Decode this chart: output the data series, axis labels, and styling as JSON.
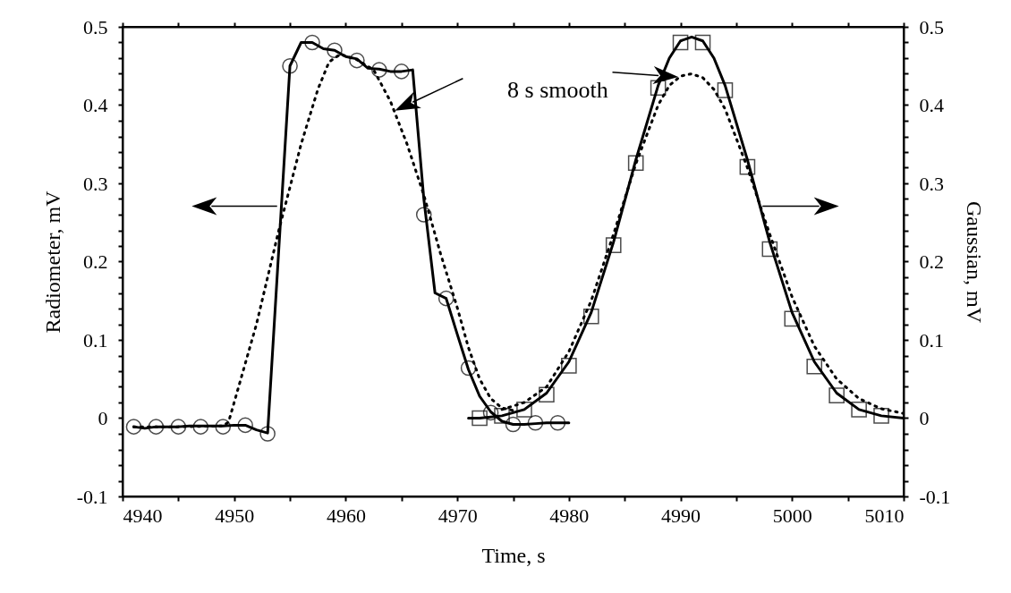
{
  "chart_data": {
    "type": "line",
    "xlabel": "Time, s",
    "ylabel": "Radiometer, mV",
    "y2label": "Gaussian, mV",
    "xlim": [
      4940,
      5010
    ],
    "ylim": [
      -0.1,
      0.5
    ],
    "y2lim": [
      -0.1,
      0.5
    ],
    "xticks": [
      4940,
      {
        "value": 4945,
        "label": null
      },
      4950,
      {
        "value": 4955,
        "label": null
      },
      4960,
      {
        "value": 4965,
        "label": null
      },
      4970,
      {
        "value": 4975,
        "label": null
      },
      4980,
      {
        "value": 4985,
        "label": null
      },
      4990,
      {
        "value": 4995,
        "label": null
      },
      5000,
      {
        "value": 5005,
        "label": null
      },
      5010
    ],
    "yticks": [
      -0.1,
      {
        "value": -0.08,
        "label": null
      },
      {
        "value": -0.06,
        "label": null
      },
      {
        "value": -0.04,
        "label": null
      },
      {
        "value": -0.02,
        "label": null
      },
      0,
      {
        "value": 0.02,
        "label": null
      },
      {
        "value": 0.04,
        "label": null
      },
      {
        "value": 0.06,
        "label": null
      },
      {
        "value": 0.08,
        "label": null
      },
      0.1,
      {
        "value": 0.12,
        "label": null
      },
      {
        "value": 0.14,
        "label": null
      },
      {
        "value": 0.16,
        "label": null
      },
      {
        "value": 0.18,
        "label": null
      },
      0.2,
      {
        "value": 0.22,
        "label": null
      },
      {
        "value": 0.24,
        "label": null
      },
      {
        "value": 0.26,
        "label": null
      },
      {
        "value": 0.28,
        "label": null
      },
      0.3,
      {
        "value": 0.32,
        "label": null
      },
      {
        "value": 0.34,
        "label": null
      },
      {
        "value": 0.36,
        "label": null
      },
      {
        "value": 0.38,
        "label": null
      },
      0.4,
      {
        "value": 0.42,
        "label": null
      },
      {
        "value": 0.44,
        "label": null
      },
      {
        "value": 0.46,
        "label": null
      },
      {
        "value": 0.48,
        "label": null
      },
      0.5
    ],
    "y2ticks": [
      -0.1,
      {
        "value": -0.08,
        "label": null
      },
      {
        "value": -0.06,
        "label": null
      },
      {
        "value": -0.04,
        "label": null
      },
      {
        "value": -0.02,
        "label": null
      },
      0,
      {
        "value": 0.02,
        "label": null
      },
      {
        "value": 0.04,
        "label": null
      },
      {
        "value": 0.06,
        "label": null
      },
      {
        "value": 0.08,
        "label": null
      },
      0.1,
      {
        "value": 0.12,
        "label": null
      },
      {
        "value": 0.14,
        "label": null
      },
      {
        "value": 0.16,
        "label": null
      },
      {
        "value": 0.18,
        "label": null
      },
      0.2,
      {
        "value": 0.22,
        "label": null
      },
      {
        "value": 0.24,
        "label": null
      },
      {
        "value": 0.26,
        "label": null
      },
      {
        "value": 0.28,
        "label": null
      },
      0.3,
      {
        "value": 0.32,
        "label": null
      },
      {
        "value": 0.34,
        "label": null
      },
      {
        "value": 0.36,
        "label": null
      },
      {
        "value": 0.38,
        "label": null
      },
      0.4,
      {
        "value": 0.42,
        "label": null
      },
      {
        "value": 0.44,
        "label": null
      },
      {
        "value": 0.46,
        "label": null
      },
      {
        "value": 0.48,
        "label": null
      },
      0.5
    ],
    "grid": false,
    "annotations": [
      "8 s smooth"
    ],
    "series": [
      {
        "color": "#000000",
        "line_style": "solid",
        "marker": "none",
        "x": [
          4941,
          4942,
          4943,
          4944,
          4945,
          4946,
          4947,
          4948,
          4949,
          4950,
          4951,
          4952,
          4953,
          4955,
          4956,
          4957,
          4958,
          4959,
          4960,
          4961,
          4962,
          4963,
          4964,
          4965,
          4966,
          4967,
          4968,
          4969,
          4970,
          4971,
          4972,
          4973,
          4974,
          4975,
          4976,
          4977,
          4978,
          4979,
          4980
        ],
        "values": [
          -0.011,
          -0.013,
          -0.011,
          -0.011,
          -0.011,
          -0.01,
          -0.01,
          -0.01,
          -0.01,
          -0.009,
          -0.009,
          -0.015,
          -0.019,
          0.45,
          0.48,
          0.48,
          0.472,
          0.47,
          0.462,
          0.459,
          0.447,
          0.446,
          0.443,
          0.443,
          0.445,
          0.28,
          0.16,
          0.153,
          0.107,
          0.062,
          0.028,
          0.008,
          -0.004,
          -0.008,
          -0.008,
          -0.007,
          -0.006,
          -0.006,
          -0.006
        ]
      },
      {
        "type": "scatter",
        "color": "#000000",
        "marker": "circle",
        "x": [
          4941,
          4943,
          4945,
          4947,
          4949,
          4951,
          4953,
          4955,
          4957,
          4959,
          4961,
          4963,
          4965,
          4967,
          4969,
          4971,
          4973,
          4975,
          4977,
          4979
        ],
        "values": [
          -0.011,
          -0.011,
          -0.011,
          -0.011,
          -0.011,
          -0.009,
          -0.02,
          0.45,
          0.48,
          0.47,
          0.457,
          0.445,
          0.443,
          0.26,
          0.153,
          0.064,
          0.007,
          -0.008,
          -0.006,
          -0.006
        ]
      },
      {
        "color": "#000000",
        "line_style": "dotted",
        "marker": "none",
        "x": [
          4941,
          4945,
          4949,
          4949.5,
          4950,
          4952,
          4954,
          4956,
          4957.5,
          4958.5,
          4959.5,
          4961,
          4962.5,
          4964,
          4965.5,
          4967,
          4968.5,
          4970,
          4971,
          4972,
          4973,
          4974,
          4975
        ],
        "values": [
          -0.011,
          -0.011,
          -0.01,
          -0.005,
          0.02,
          0.12,
          0.24,
          0.35,
          0.42,
          0.455,
          0.465,
          0.458,
          0.445,
          0.405,
          0.35,
          0.285,
          0.21,
          0.141,
          0.09,
          0.05,
          0.025,
          0.013,
          0.01
        ]
      },
      {
        "axis": "y2",
        "color": "#000000",
        "line_style": "solid",
        "marker": "none",
        "x": [
          4971,
          4972,
          4974,
          4976,
          4978,
          4980,
          4982,
          4984,
          4986,
          4988,
          4989,
          4990,
          4991,
          4992,
          4993,
          4994,
          4996,
          4998,
          5000,
          5002,
          5004,
          5006,
          5008,
          5010
        ],
        "values": [
          0,
          0,
          0.003,
          0.011,
          0.032,
          0.072,
          0.135,
          0.225,
          0.33,
          0.425,
          0.46,
          0.482,
          0.487,
          0.482,
          0.46,
          0.425,
          0.33,
          0.225,
          0.135,
          0.072,
          0.032,
          0.011,
          0.003,
          0
        ]
      },
      {
        "type": "scatter",
        "axis": "y2",
        "color": "#000000",
        "marker": "square",
        "x": [
          4972,
          4974,
          4976,
          4978,
          4980,
          4982,
          4984,
          4986,
          4988,
          4990,
          4992,
          4994,
          4996,
          4998,
          5000,
          5002,
          5004,
          5006,
          5008
        ],
        "values": [
          0,
          0.003,
          0.011,
          0.03,
          0.067,
          0.13,
          0.221,
          0.326,
          0.422,
          0.48,
          0.48,
          0.419,
          0.321,
          0.216,
          0.127,
          0.066,
          0.029,
          0.011,
          0.003
        ]
      },
      {
        "axis": "y2",
        "color": "#000000",
        "line_style": "dotted",
        "marker": "none",
        "x": [
          4974,
          4976,
          4978,
          4980,
          4982,
          4984,
          4986,
          4988,
          4989,
          4990,
          4991,
          4992,
          4993,
          4994,
          4996,
          4998,
          5000,
          5002,
          5004,
          5006,
          5008,
          5010
        ],
        "values": [
          0.011,
          0.02,
          0.04,
          0.085,
          0.15,
          0.235,
          0.325,
          0.4,
          0.425,
          0.437,
          0.44,
          0.435,
          0.42,
          0.395,
          0.32,
          0.235,
          0.155,
          0.092,
          0.05,
          0.025,
          0.012,
          0.006
        ]
      }
    ]
  }
}
